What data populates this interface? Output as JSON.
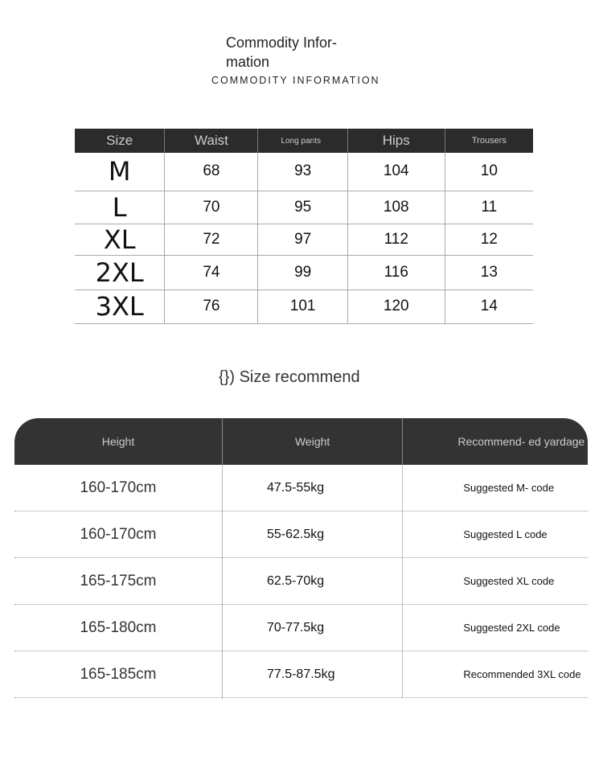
{
  "title": "Commodity Infor- mation",
  "subtitle": "COMMODITY INFORMATION",
  "size_table": {
    "headers": [
      "Size",
      "Waist",
      "Long pants",
      "Hips",
      "Trousers"
    ],
    "rows": [
      [
        "M",
        "68",
        "93",
        "104",
        "10"
      ],
      [
        "L",
        "70",
        "95",
        "108",
        "11"
      ],
      [
        "XL",
        "72",
        "97",
        "112",
        "12"
      ],
      [
        "2XL",
        "74",
        "99",
        "116",
        "13"
      ],
      [
        "3XL",
        "76",
        "101",
        "120",
        "14"
      ]
    ]
  },
  "recommend_title": "{}) Size recommend",
  "recommend_table": {
    "headers": [
      "Height",
      "Weight",
      "Recommend- ed yardage"
    ],
    "rows": [
      [
        "160-170cm",
        "47.5-55kg",
        "Suggested M- code"
      ],
      [
        "160-170cm",
        "55-62.5kg",
        "Suggested L code"
      ],
      [
        "165-175cm",
        "62.5-70kg",
        "Suggested XL code"
      ],
      [
        "165-180cm",
        "70-77.5kg",
        "Suggested 2XL code"
      ],
      [
        "165-185cm",
        "77.5-87.5kg",
        "Recommended 3XL code"
      ]
    ]
  },
  "colors": {
    "header_bg": "#2b2b2b",
    "header_text": "#cccccc"
  }
}
